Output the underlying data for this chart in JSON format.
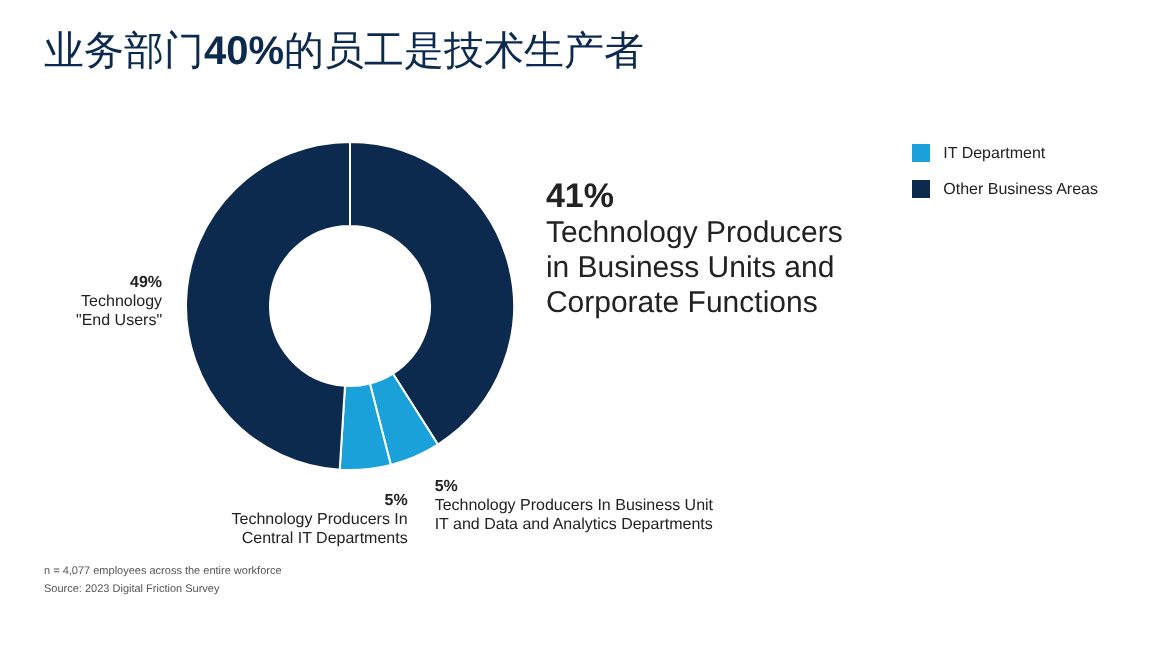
{
  "chart_data": {
    "type": "donut",
    "title": "业务部门40%的员工是技术生产者",
    "categories": [
      "Technology Producers\nin Business Units and\nCorporate Functions",
      "Technology Producers In Business Unit\nIT and Data and Analytics Departments",
      "Technology Producers In\nCentral IT Departments",
      "Technology\n\"End Users\""
    ],
    "values": [
      41,
      5,
      5,
      49
    ],
    "colors": [
      "#0c2a4e",
      "#1ba1d9",
      "#1ba1d9",
      "#0c2a4e"
    ],
    "value_labels": [
      "41%",
      "5%",
      "5%",
      "49%"
    ],
    "annotations": [
      "IT Department",
      "Other Business Areas",
      "n = 4,077 employees across the entire workforce",
      "Source: 2023 Digital Friction Survey"
    ]
  }
}
